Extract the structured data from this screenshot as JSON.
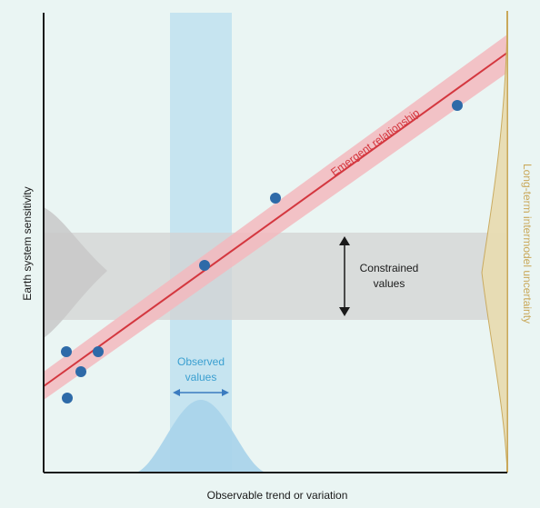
{
  "colors": {
    "background": "#eaf5f3",
    "axis": "#1a1a1a",
    "regression_line": "#d4373f",
    "regression_band": "#f3b8bd",
    "observed_band": "#bfe0ef",
    "observed_text": "#3a9fd0",
    "constrained_band": "#d3d3d3",
    "points": "#2e6aa8",
    "uncertainty": "#c9a85a",
    "uncertainty_fill": "#e8dcb2",
    "prior_gray": "#c8c8c8",
    "observed_gauss": "#a7d3ea"
  },
  "labels": {
    "x_axis": "Observable trend or variation",
    "y_axis": "Earth system sensitivity",
    "emergent": "Emergent relationship",
    "constrained_line1": "Constrained",
    "constrained_line2": "values",
    "observed_line1": "Observed",
    "observed_line2": "values",
    "uncertainty": "Long-term intermodel uncertainty"
  },
  "points_count_note": null
}
